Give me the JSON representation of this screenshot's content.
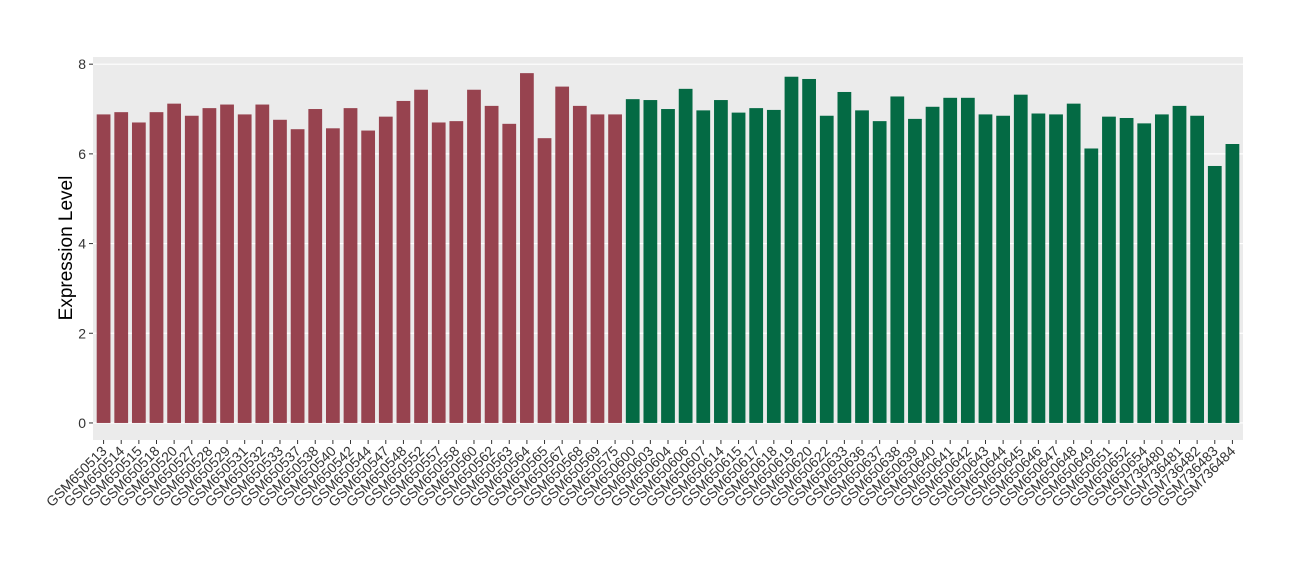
{
  "chart_data": {
    "type": "bar",
    "y_label": "Expression Level",
    "ylim": [
      -0.38,
      8.16
    ],
    "yticks": [
      0,
      2,
      4,
      6,
      8
    ],
    "grid": true,
    "groups": [
      {
        "color": "#97434f",
        "categories": [
          "GSM650513",
          "GSM650514",
          "GSM650515",
          "GSM650518",
          "GSM650520",
          "GSM650527",
          "GSM650528",
          "GSM650529",
          "GSM650531",
          "GSM650532",
          "GSM650533",
          "GSM650537",
          "GSM650538",
          "GSM650540",
          "GSM650542",
          "GSM650544",
          "GSM650547",
          "GSM650548",
          "GSM650552",
          "GSM650557",
          "GSM650558",
          "GSM650560",
          "GSM650562",
          "GSM650563",
          "GSM650564",
          "GSM650565",
          "GSM650567",
          "GSM650568",
          "GSM650569",
          "GSM650575"
        ],
        "values": [
          6.88,
          6.93,
          6.7,
          6.93,
          7.12,
          6.85,
          7.02,
          7.1,
          6.88,
          7.1,
          6.76,
          6.55,
          7.0,
          6.57,
          7.02,
          6.52,
          6.83,
          7.18,
          7.43,
          6.7,
          6.73,
          7.43,
          7.07,
          6.67,
          7.8,
          6.35,
          7.5,
          7.07,
          6.88,
          6.88
        ]
      },
      {
        "color": "#046a44",
        "categories": [
          "GSM650600",
          "GSM650603",
          "GSM650604",
          "GSM650606",
          "GSM650607",
          "GSM650614",
          "GSM650615",
          "GSM650617",
          "GSM650618",
          "GSM650619",
          "GSM650620",
          "GSM650622",
          "GSM650633",
          "GSM650636",
          "GSM650637",
          "GSM650638",
          "GSM650639",
          "GSM650640",
          "GSM650641",
          "GSM650642",
          "GSM650643",
          "GSM650644",
          "GSM650645",
          "GSM650646",
          "GSM650647",
          "GSM650648",
          "GSM650649",
          "GSM650651",
          "GSM650652",
          "GSM650654",
          "GSM736480",
          "GSM736481",
          "GSM736482",
          "GSM736483",
          "GSM736484"
        ],
        "values": [
          7.22,
          7.2,
          7.0,
          7.45,
          6.97,
          7.2,
          6.92,
          7.02,
          6.98,
          7.72,
          7.67,
          6.85,
          7.38,
          6.97,
          6.73,
          7.28,
          6.78,
          7.05,
          7.25,
          7.25,
          6.88,
          6.85,
          7.32,
          6.9,
          6.88,
          7.12,
          6.12,
          6.83,
          6.8,
          6.68,
          6.88,
          7.07,
          6.85,
          5.73,
          6.22
        ]
      }
    ]
  }
}
